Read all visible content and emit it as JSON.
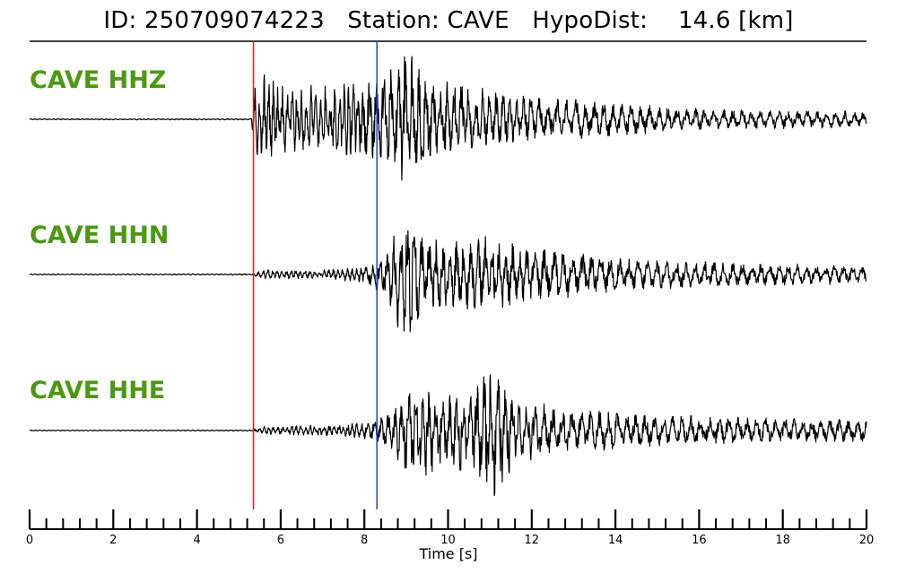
{
  "title": {
    "id_label": "ID:",
    "id": "250709074223",
    "station_label": "Station:",
    "station": "CAVE",
    "dist_label": "HypoDist:",
    "dist": "14.6",
    "dist_unit": "[km]"
  },
  "chart_data": {
    "type": "line",
    "xlabel": "Time [s]",
    "xlim": [
      0,
      20
    ],
    "x_ticks": [
      0,
      2,
      4,
      6,
      8,
      10,
      12,
      14,
      16,
      18,
      20
    ],
    "minor_tick_step": 0.4,
    "grid": false,
    "p_pick_time": 5.35,
    "s_pick_time": 8.3,
    "p_pick_color": "#e8191a",
    "s_pick_color": "#1f3fe0",
    "label_color": "#4a9a10",
    "trace_color": "#000000",
    "series": [
      {
        "name": "CAVE HHZ",
        "envelope": [
          [
            0,
            0.006
          ],
          [
            5.3,
            0.008
          ],
          [
            5.45,
            0.8
          ],
          [
            5.9,
            0.45
          ],
          [
            7.0,
            0.45
          ],
          [
            8.0,
            0.5
          ],
          [
            8.7,
            0.75
          ],
          [
            9.0,
            1.0
          ],
          [
            9.5,
            0.6
          ],
          [
            10.5,
            0.42
          ],
          [
            12.0,
            0.3
          ],
          [
            14.0,
            0.22
          ],
          [
            16.0,
            0.14
          ],
          [
            18.0,
            0.12
          ],
          [
            20.0,
            0.1
          ]
        ]
      },
      {
        "name": "CAVE HHN",
        "envelope": [
          [
            0,
            0.006
          ],
          [
            5.3,
            0.008
          ],
          [
            5.6,
            0.06
          ],
          [
            7.0,
            0.06
          ],
          [
            8.0,
            0.1
          ],
          [
            8.5,
            0.3
          ],
          [
            9.0,
            1.0
          ],
          [
            9.5,
            0.45
          ],
          [
            11.0,
            0.5
          ],
          [
            12.0,
            0.35
          ],
          [
            14.0,
            0.22
          ],
          [
            16.0,
            0.18
          ],
          [
            18.0,
            0.14
          ],
          [
            20.0,
            0.12
          ]
        ]
      },
      {
        "name": "CAVE HHE",
        "envelope": [
          [
            0,
            0.006
          ],
          [
            5.3,
            0.008
          ],
          [
            5.6,
            0.06
          ],
          [
            7.5,
            0.08
          ],
          [
            8.3,
            0.15
          ],
          [
            8.8,
            0.45
          ],
          [
            9.2,
            0.7
          ],
          [
            10.0,
            0.5
          ],
          [
            10.4,
            0.6
          ],
          [
            11.1,
            1.0
          ],
          [
            11.6,
            0.45
          ],
          [
            13.0,
            0.3
          ],
          [
            15.0,
            0.22
          ],
          [
            17.0,
            0.18
          ],
          [
            20.0,
            0.16
          ]
        ]
      }
    ]
  }
}
